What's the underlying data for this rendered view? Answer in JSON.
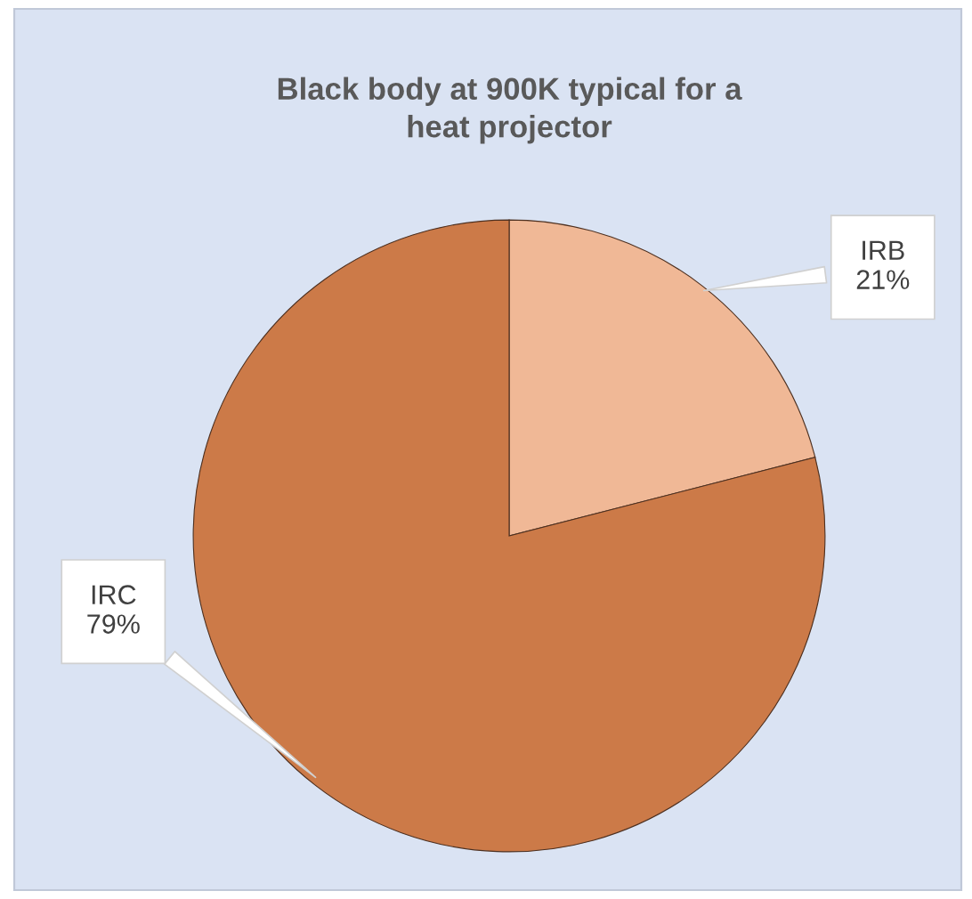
{
  "chart_data": {
    "type": "pie",
    "title": "Black body at 900K typical for a\nheat projector",
    "categories": [
      "IRB",
      "IRC"
    ],
    "values": [
      21,
      79
    ],
    "value_labels": [
      "21%",
      "79%"
    ],
    "colors": [
      "#f0b896",
      "#cc7a48"
    ]
  }
}
